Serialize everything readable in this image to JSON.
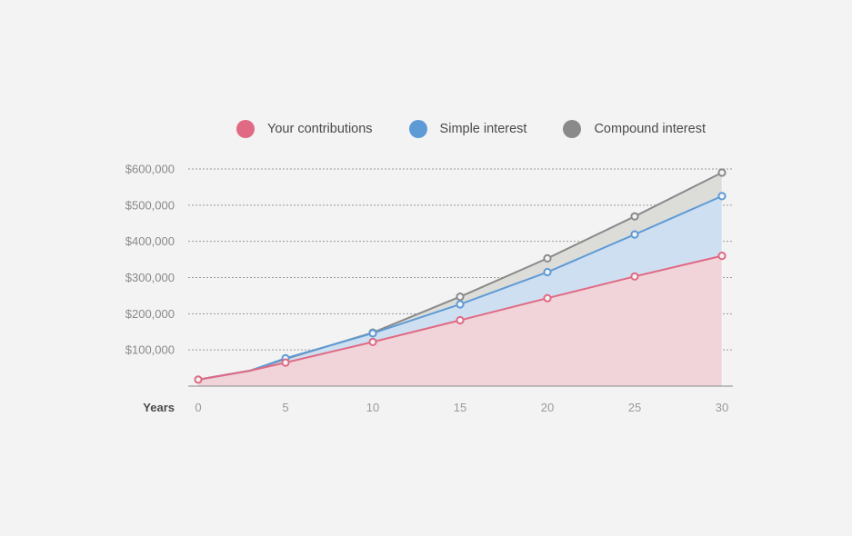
{
  "chart_data": {
    "type": "area",
    "xlabel": "Years",
    "x": [
      0,
      3,
      5,
      10,
      15,
      20,
      25,
      30
    ],
    "x_ticks": [
      "0",
      "5",
      "10",
      "15",
      "20",
      "25",
      "30"
    ],
    "x_tick_values": [
      0,
      5,
      10,
      15,
      20,
      25,
      30
    ],
    "y_ticks": [
      "$100,000",
      "$200,000",
      "$300,000",
      "$400,000",
      "$500,000",
      "$600,000"
    ],
    "y_tick_values": [
      100000,
      200000,
      300000,
      400000,
      500000,
      600000
    ],
    "ylim": [
      0,
      600000
    ],
    "grid": true,
    "legend_position": "top",
    "series": [
      {
        "name": "Compound interest",
        "color": "#8a8a8a",
        "fill": "#dcdcd8",
        "values": [
          18000,
          43000,
          75000,
          148000,
          247000,
          353000,
          469000,
          590000
        ],
        "markers": [
          false,
          false,
          false,
          true,
          true,
          true,
          true,
          true
        ]
      },
      {
        "name": "Simple interest",
        "color": "#5e9bd6",
        "fill": "#cfdff2",
        "values": [
          18000,
          43000,
          77000,
          146000,
          226000,
          315000,
          419000,
          525000
        ],
        "markers": [
          false,
          false,
          true,
          true,
          true,
          true,
          true,
          true
        ]
      },
      {
        "name": "Your contributions",
        "color": "#e06a83",
        "fill": "#f0d4da",
        "values": [
          18000,
          43000,
          65000,
          122000,
          182000,
          243000,
          303000,
          360000
        ],
        "markers": [
          true,
          false,
          true,
          true,
          true,
          true,
          true,
          true
        ]
      }
    ]
  },
  "legend": [
    {
      "label": "Your contributions",
      "color": "#e06a83"
    },
    {
      "label": "Simple interest",
      "color": "#5e9bd6"
    },
    {
      "label": "Compound interest",
      "color": "#8a8a8a"
    }
  ]
}
